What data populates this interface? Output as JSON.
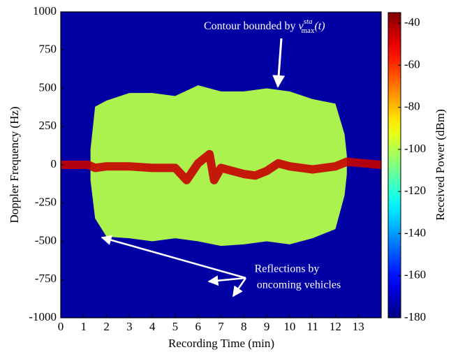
{
  "chart_data": {
    "type": "spectrogram",
    "xlabel": "Recording Time (min)",
    "ylabel": "Doppler Frequency (Hz)",
    "xlim": [
      0,
      14
    ],
    "xticks": [
      0,
      1,
      2,
      3,
      4,
      5,
      6,
      7,
      8,
      9,
      10,
      11,
      12,
      13
    ],
    "ylim": [
      -1000,
      1000
    ],
    "yticks": [
      -1000,
      -750,
      -500,
      -250,
      0,
      250,
      500,
      750,
      1000
    ],
    "colorbar": {
      "label": "Received Power (dBm)",
      "clim": [
        -180,
        -35
      ],
      "ticks": [
        -180,
        -160,
        -140,
        -120,
        -100,
        -80,
        -60,
        -40
      ]
    },
    "background_power": -175,
    "contour_power": -100,
    "center_power": -45,
    "contour": {
      "x": [
        1.3,
        1.5,
        2,
        3,
        4,
        5,
        6,
        7,
        8,
        9,
        10,
        11,
        12,
        12.4,
        12.5
      ],
      "upper": [
        100,
        380,
        420,
        470,
        470,
        450,
        520,
        480,
        480,
        500,
        480,
        430,
        400,
        200,
        60
      ],
      "lower": [
        -100,
        -350,
        -470,
        -480,
        -500,
        -480,
        -500,
        -530,
        -520,
        -500,
        -520,
        -480,
        -420,
        -200,
        -60
      ]
    },
    "center": {
      "x": [
        0,
        1.2,
        1.5,
        2,
        3,
        4,
        5,
        5.5,
        6,
        6.5,
        6.7,
        7,
        8,
        8.5,
        9,
        9.5,
        10,
        11,
        12,
        12.5,
        14
      ],
      "values": [
        0,
        0,
        -20,
        -10,
        -10,
        -20,
        -20,
        -100,
        10,
        70,
        -100,
        -20,
        -60,
        -70,
        -40,
        10,
        -10,
        -30,
        -10,
        20,
        0
      ]
    },
    "annotations": {
      "contour": {
        "text": "Contour bounded by",
        "symbol": "ν",
        "sup": "sta",
        "sub": "max",
        "arg": "(t)"
      },
      "reflections": [
        "Reflections by",
        "oncoming vehicles"
      ]
    }
  }
}
